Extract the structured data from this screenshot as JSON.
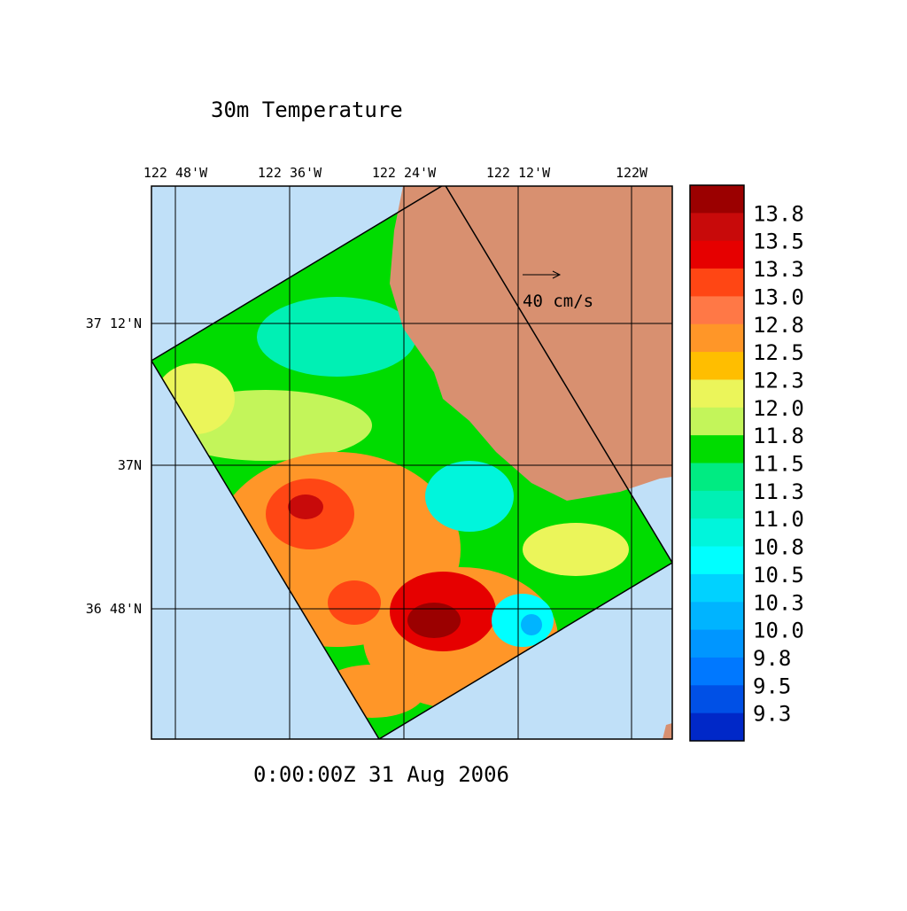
{
  "title": "30m Temperature",
  "timestamp": "0:00:00Z  31 Aug 2006",
  "longitude_labels": [
    "122 48'W",
    "122 36'W",
    "122 24'W",
    "122 12'W",
    "122W"
  ],
  "latitude_labels": [
    "37 12'N",
    "37N",
    "36 48'N"
  ],
  "vector_scale_label": "40 cm/s",
  "colorbar": {
    "levels": [
      13.8,
      13.5,
      13.3,
      {
        "value": 13,
        "label": "13.0"
      },
      12.8,
      12.5,
      12.3,
      {
        "value": 12,
        "label": "12.0"
      },
      11.8,
      11.5,
      11.3,
      {
        "value": 11,
        "label": "11.0"
      },
      10.8,
      10.5,
      10.3,
      {
        "value": 10,
        "label": "10.0"
      },
      9.8,
      9.5,
      9.3
    ],
    "colors": [
      "#9b0000",
      "#c80a0a",
      "#e60000",
      "#ff4614",
      "#ff7846",
      "#ff9628",
      "#ffbe00",
      "#ebf55a",
      "#c3f55a",
      "#00dc00",
      "#00eb82",
      "#00f0b4",
      "#00f5dc",
      "#00ffff",
      "#00d2ff",
      "#00b4ff",
      "#0096ff",
      "#0078ff",
      "#0050e6",
      "#0028c8"
    ]
  }
}
